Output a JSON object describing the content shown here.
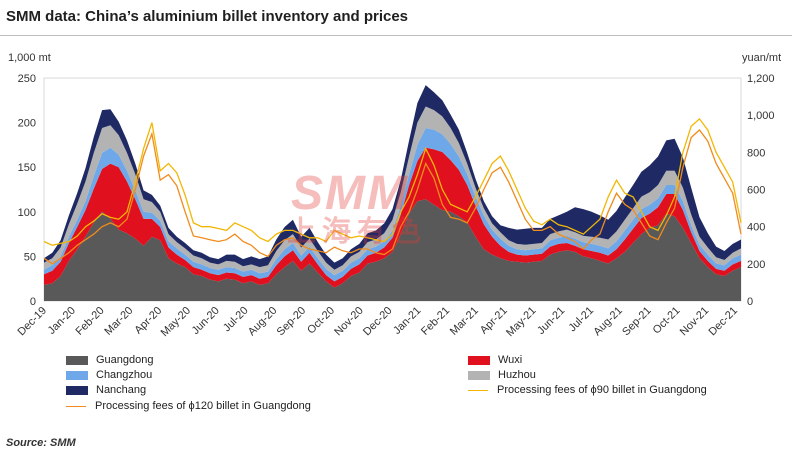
{
  "title": "SMM data: China’s aluminium billet inventory and prices",
  "left_unit": "1,000 mt",
  "right_unit": "yuan/mt",
  "source": "Source: SMM",
  "watermark": {
    "logo": "SMM",
    "text": "上海有色"
  },
  "chart_data": {
    "type": "area",
    "x_ticks": [
      "Dec-19",
      "Jan-20",
      "Feb-20",
      "Mar-20",
      "Apr-20",
      "May-20",
      "Jun-20",
      "Jul-20",
      "Aug-20",
      "Sep-20",
      "Oct-20",
      "Nov-20",
      "Dec-20",
      "Jan-21",
      "Feb-21",
      "Mar-21",
      "Apr-21",
      "May-21",
      "Jun-21",
      "Jul-21",
      "Aug-21",
      "Sep-21",
      "Oct-21",
      "Nov-21",
      "Dec-21"
    ],
    "y_left": {
      "label": "1,000 mt",
      "min": 0,
      "max": 250,
      "ticks": [
        0,
        50,
        100,
        150,
        200,
        250
      ]
    },
    "y_right": {
      "label": "yuan/mt",
      "min": 0,
      "max": 1200,
      "ticks": [
        "0",
        "200",
        "400",
        "600",
        "800",
        "1,000",
        "1,200"
      ]
    },
    "stacked_areas": [
      {
        "name": "Guangdong",
        "color": "#595959",
        "values": [
          18,
          20,
          28,
          45,
          58,
          72,
          88,
          100,
          92,
          80,
          76,
          70,
          62,
          72,
          68,
          48,
          42,
          38,
          30,
          28,
          24,
          22,
          25,
          24,
          20,
          22,
          18,
          20,
          30,
          38,
          45,
          34,
          42,
          32,
          22,
          15,
          20,
          28,
          32,
          42,
          44,
          48,
          55,
          75,
          98,
          112,
          114,
          108,
          102,
          100,
          95,
          88,
          72,
          58,
          52,
          48,
          45,
          44,
          43,
          44,
          45,
          52,
          55,
          57,
          55,
          50,
          48,
          45,
          42,
          48,
          55,
          65,
          75,
          82,
          85,
          98,
          95,
          82,
          65,
          48,
          38,
          30,
          28,
          34,
          38
        ]
      },
      {
        "name": "Wuxi",
        "color": "#e0101e",
        "values": [
          12,
          14,
          16,
          20,
          25,
          30,
          38,
          48,
          62,
          70,
          58,
          44,
          30,
          20,
          15,
          12,
          10,
          8,
          8,
          7,
          7,
          7,
          7,
          7,
          7,
          7,
          7,
          7,
          10,
          12,
          12,
          10,
          12,
          9,
          7,
          7,
          7,
          8,
          9,
          9,
          10,
          12,
          16,
          22,
          32,
          45,
          58,
          62,
          65,
          58,
          52,
          42,
          35,
          28,
          20,
          14,
          10,
          8,
          8,
          8,
          8,
          9,
          9,
          8,
          7,
          8,
          8,
          9,
          9,
          10,
          14,
          16,
          18,
          16,
          20,
          22,
          25,
          20,
          12,
          8,
          7,
          6,
          6,
          7,
          7
        ]
      },
      {
        "name": "Changzhou",
        "color": "#6fa8e8",
        "values": [
          5,
          6,
          6,
          7,
          8,
          10,
          14,
          18,
          18,
          14,
          12,
          10,
          8,
          7,
          7,
          7,
          7,
          6,
          6,
          6,
          6,
          6,
          6,
          6,
          6,
          6,
          6,
          6,
          7,
          8,
          8,
          7,
          7,
          7,
          7,
          7,
          7,
          7,
          7,
          7,
          7,
          7,
          8,
          10,
          12,
          18,
          22,
          22,
          20,
          18,
          15,
          12,
          10,
          10,
          8,
          8,
          7,
          6,
          6,
          6,
          6,
          7,
          7,
          8,
          8,
          8,
          8,
          8,
          8,
          9,
          10,
          10,
          10,
          10,
          10,
          10,
          10,
          10,
          8,
          7,
          7,
          6,
          6,
          7,
          7
        ]
      },
      {
        "name": "Huzhou",
        "color": "#b3b3b3",
        "values": [
          8,
          8,
          10,
          14,
          18,
          22,
          26,
          28,
          25,
          22,
          20,
          18,
          14,
          12,
          10,
          8,
          7,
          7,
          7,
          7,
          6,
          6,
          7,
          7,
          6,
          6,
          7,
          7,
          9,
          10,
          10,
          9,
          9,
          8,
          7,
          6,
          6,
          7,
          7,
          8,
          8,
          9,
          12,
          15,
          20,
          25,
          24,
          22,
          20,
          18,
          15,
          12,
          10,
          8,
          7,
          7,
          6,
          6,
          6,
          6,
          6,
          7,
          7,
          7,
          7,
          7,
          8,
          9,
          10,
          11,
          12,
          13,
          14,
          14,
          15,
          16,
          16,
          15,
          12,
          9,
          8,
          7,
          6,
          6,
          7
        ]
      },
      {
        "name": "Nanchang",
        "color": "#1f2a64",
        "values": [
          5,
          6,
          8,
          10,
          12,
          15,
          18,
          20,
          18,
          15,
          14,
          12,
          10,
          8,
          7,
          7,
          6,
          6,
          6,
          6,
          6,
          6,
          7,
          8,
          8,
          9,
          9,
          10,
          13,
          15,
          16,
          12,
          12,
          10,
          9,
          8,
          8,
          8,
          9,
          10,
          10,
          11,
          12,
          14,
          18,
          22,
          24,
          20,
          18,
          15,
          15,
          12,
          10,
          8,
          8,
          8,
          14,
          16,
          18,
          18,
          17,
          17,
          18,
          20,
          28,
          30,
          28,
          25,
          22,
          23,
          25,
          26,
          28,
          30,
          32,
          34,
          36,
          34,
          30,
          22,
          16,
          12,
          10,
          10,
          10
        ]
      }
    ],
    "lines": [
      {
        "name": "Processing fees of ϕ90 billet in Guangdong",
        "color": "#f2b705",
        "axis": "right",
        "values": [
          320,
          300,
          310,
          320,
          350,
          400,
          430,
          470,
          450,
          440,
          480,
          640,
          820,
          960,
          700,
          740,
          690,
          570,
          420,
          400,
          400,
          390,
          380,
          420,
          400,
          380,
          340,
          320,
          360,
          380,
          380,
          360,
          340,
          340,
          320,
          380,
          360,
          340,
          350,
          340,
          330,
          320,
          360,
          480,
          560,
          680,
          820,
          730,
          600,
          520,
          500,
          480,
          560,
          650,
          740,
          780,
          700,
          600,
          500,
          430,
          410,
          440,
          410,
          400,
          380,
          360,
          400,
          440,
          560,
          650,
          580,
          560,
          480,
          400,
          380,
          460,
          560,
          800,
          940,
          980,
          920,
          800,
          720,
          640,
          420
        ]
      },
      {
        "name": "Processing fees of ϕ120 billet in Guangdong",
        "color": "#f08b1c",
        "axis": "right",
        "values": [
          230,
          200,
          230,
          260,
          300,
          330,
          360,
          400,
          420,
          400,
          440,
          600,
          780,
          900,
          650,
          680,
          620,
          480,
          350,
          340,
          330,
          320,
          330,
          360,
          320,
          300,
          260,
          240,
          300,
          330,
          340,
          300,
          280,
          270,
          260,
          290,
          270,
          260,
          280,
          280,
          260,
          250,
          280,
          400,
          480,
          600,
          740,
          660,
          520,
          450,
          440,
          420,
          500,
          600,
          690,
          720,
          640,
          540,
          440,
          380,
          380,
          400,
          360,
          340,
          320,
          280,
          330,
          360,
          480,
          580,
          520,
          490,
          420,
          350,
          330,
          420,
          500,
          720,
          880,
          920,
          860,
          740,
          660,
          580,
          360
        ]
      }
    ],
    "legend_placement": "bottom"
  }
}
